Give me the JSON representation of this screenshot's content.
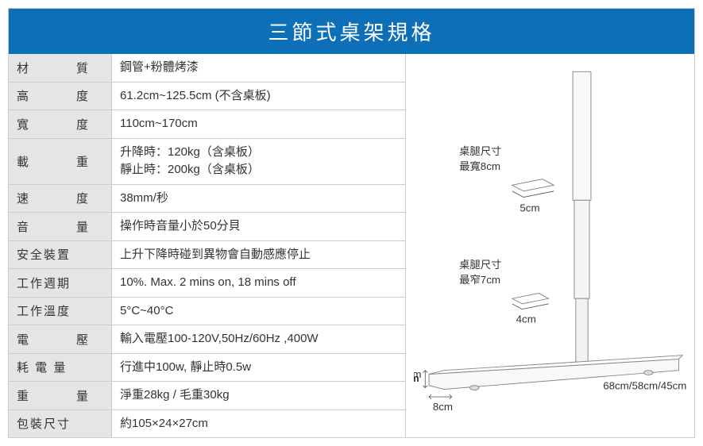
{
  "title": "三節式桌架規格",
  "rows": [
    {
      "label": "材　　質",
      "value": "鋼管+粉體烤漆",
      "tight": false
    },
    {
      "label": "高　　度",
      "value": "61.2cm~125.5cm (不含桌板)",
      "tight": false
    },
    {
      "label": "寬　　度",
      "value": "110cm~170cm",
      "tight": false
    },
    {
      "label": "載　　重",
      "value": "升降時：120kg（含桌板）\n靜止時：200kg（含桌板）",
      "tight": false
    },
    {
      "label": "速　　度",
      "value": "38mm/秒",
      "tight": false
    },
    {
      "label": "音　　量",
      "value": "操作時音量小於50分貝",
      "tight": false
    },
    {
      "label": "安全裝置",
      "value": "上升下降時碰到異物會自動感應停止",
      "tight": true
    },
    {
      "label": "工作週期",
      "value": "10%. Max. 2 mins on, 18 mins off",
      "tight": true
    },
    {
      "label": "工作溫度",
      "value": "5°C~40°C",
      "tight": true
    },
    {
      "label": "電　　壓",
      "value": "輸入電壓100-120V,50Hz/60Hz ,400W",
      "tight": false
    },
    {
      "label": "耗 電 量",
      "value": "行進中100w, 靜止時0.5w",
      "tight": true
    },
    {
      "label": "重　　量",
      "value": "淨重28kg / 毛重30kg",
      "tight": false
    },
    {
      "label": "包裝尺寸",
      "value": "約105×24×27cm",
      "tight": true
    }
  ],
  "diagram": {
    "leg_wide_label1": "桌腿尺寸",
    "leg_wide_label2": "最寬8cm",
    "leg_wide_dim": "5cm",
    "leg_narrow_label1": "桌腿尺寸",
    "leg_narrow_label2": "最窄7cm",
    "leg_narrow_dim": "4cm",
    "foot_height": "4cm",
    "foot_width": "8cm",
    "foot_length": "68cm/58cm/45cm",
    "stroke": "#888888",
    "text_color": "#333333"
  }
}
